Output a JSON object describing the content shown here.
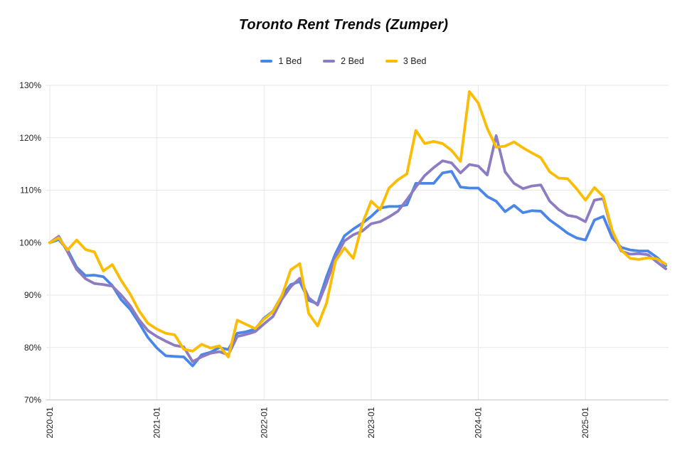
{
  "chart_data": {
    "type": "line",
    "title": "Toronto Rent Trends (Zumper)",
    "legend_position": "top",
    "grid": true,
    "ylim": [
      70,
      130
    ],
    "yticks": [
      "70%",
      "80%",
      "90%",
      "100%",
      "110%",
      "120%",
      "130%"
    ],
    "xtick_shown_every": 12,
    "xticks_visible": [
      "2020-01",
      "2021-01",
      "2022-01",
      "2023-01",
      "2024-01",
      "2025-01"
    ],
    "grid_color": "#e7e7e7",
    "axis_color": "#c7c7c7",
    "tick_color": "#1f1f1f",
    "x_labels": [
      "2020-01",
      "2020-02",
      "2020-03",
      "2020-04",
      "2020-05",
      "2020-06",
      "2020-07",
      "2020-08",
      "2020-09",
      "2020-10",
      "2020-11",
      "2020-12",
      "2021-01",
      "2021-02",
      "2021-03",
      "2021-04",
      "2021-05",
      "2021-06",
      "2021-07",
      "2021-08",
      "2021-09",
      "2021-10",
      "2021-11",
      "2021-12",
      "2022-01",
      "2022-02",
      "2022-03",
      "2022-04",
      "2022-05",
      "2022-06",
      "2022-07",
      "2022-08",
      "2022-09",
      "2022-10",
      "2022-11",
      "2022-12",
      "2023-01",
      "2023-02",
      "2023-03",
      "2023-04",
      "2023-05",
      "2023-06",
      "2023-07",
      "2023-08",
      "2023-09",
      "2023-10",
      "2023-11",
      "2023-12",
      "2024-01",
      "2024-02",
      "2024-03",
      "2024-04",
      "2024-05",
      "2024-06",
      "2024-07",
      "2024-08",
      "2024-09",
      "2024-10",
      "2024-11",
      "2024-12",
      "2025-01",
      "2025-02",
      "2025-03",
      "2025-04",
      "2025-05",
      "2025-06",
      "2025-07",
      "2025-08",
      "2025-09",
      "2025-10"
    ],
    "series": [
      {
        "name": "1 Bed",
        "color": "#4a86e8",
        "values": [
          100,
          100.6,
          98.6,
          95.3,
          93.7,
          93.8,
          93.5,
          91.8,
          89.1,
          87.3,
          84.7,
          81.9,
          79.9,
          78.4,
          78.3,
          78.2,
          76.5,
          78.6,
          79.1,
          80,
          79.6,
          82.7,
          83,
          83.5,
          85.6,
          86.9,
          89.9,
          92,
          92.6,
          89,
          88.3,
          93.5,
          97.9,
          101.3,
          102.6,
          103.7,
          105,
          106.6,
          106.9,
          106.9,
          107.2,
          111.3,
          111.3,
          111.3,
          113.3,
          113.6,
          110.6,
          110.4,
          110.4,
          108.8,
          107.9,
          105.9,
          107.1,
          105.7,
          106.1,
          106,
          104.3,
          103.1,
          101.8,
          100.9,
          100.5,
          104.3,
          105,
          100.9,
          99.1,
          98.6,
          98.4,
          98.4,
          97.2,
          95.6
        ]
      },
      {
        "name": "2 Bed",
        "color": "#8e7cc3",
        "values": [
          100,
          101.2,
          98.2,
          94.9,
          93.1,
          92.2,
          92,
          91.7,
          90,
          88,
          85.3,
          83.2,
          82.1,
          81.2,
          80.4,
          80.1,
          77.3,
          78.2,
          78.9,
          79.2,
          78.6,
          82.1,
          82.5,
          83,
          84.5,
          85.9,
          89.2,
          91.6,
          93.2,
          89.5,
          88.1,
          92.3,
          97.2,
          100.3,
          101.5,
          102.2,
          103.6,
          104,
          104.9,
          106,
          108.2,
          110.6,
          112.8,
          114.3,
          115.6,
          115.2,
          113.3,
          114.9,
          114.6,
          112.9,
          120.4,
          113.5,
          111.3,
          110.3,
          110.8,
          111,
          107.9,
          106.3,
          105.2,
          104.9,
          104,
          108.1,
          108.4,
          102,
          98.4,
          97.8,
          97.9,
          97.7,
          96.3,
          95
        ]
      },
      {
        "name": "3 Bed",
        "color": "#fbbc04",
        "values": [
          100,
          100.9,
          98.6,
          100.5,
          98.7,
          98.2,
          94.6,
          95.8,
          92.8,
          90.2,
          87,
          84.6,
          83.5,
          82.7,
          82.4,
          79.7,
          79.3,
          80.6,
          79.9,
          80.3,
          78.2,
          85.2,
          84.4,
          83.6,
          85.4,
          86.8,
          89.9,
          94.8,
          96,
          86.5,
          84.1,
          88.5,
          96.5,
          99,
          97,
          103.6,
          107.9,
          106.3,
          110.4,
          112,
          113.1,
          121.4,
          118.9,
          119.3,
          118.9,
          117.6,
          115.5,
          128.8,
          126.6,
          121.8,
          118.2,
          118.4,
          119.2,
          118.1,
          117.1,
          116.2,
          113.5,
          112.3,
          112.2,
          110.3,
          108.1,
          110.5,
          108.8,
          102.3,
          98.6,
          97,
          96.8,
          97.1,
          96.9,
          95.9
        ]
      }
    ]
  }
}
